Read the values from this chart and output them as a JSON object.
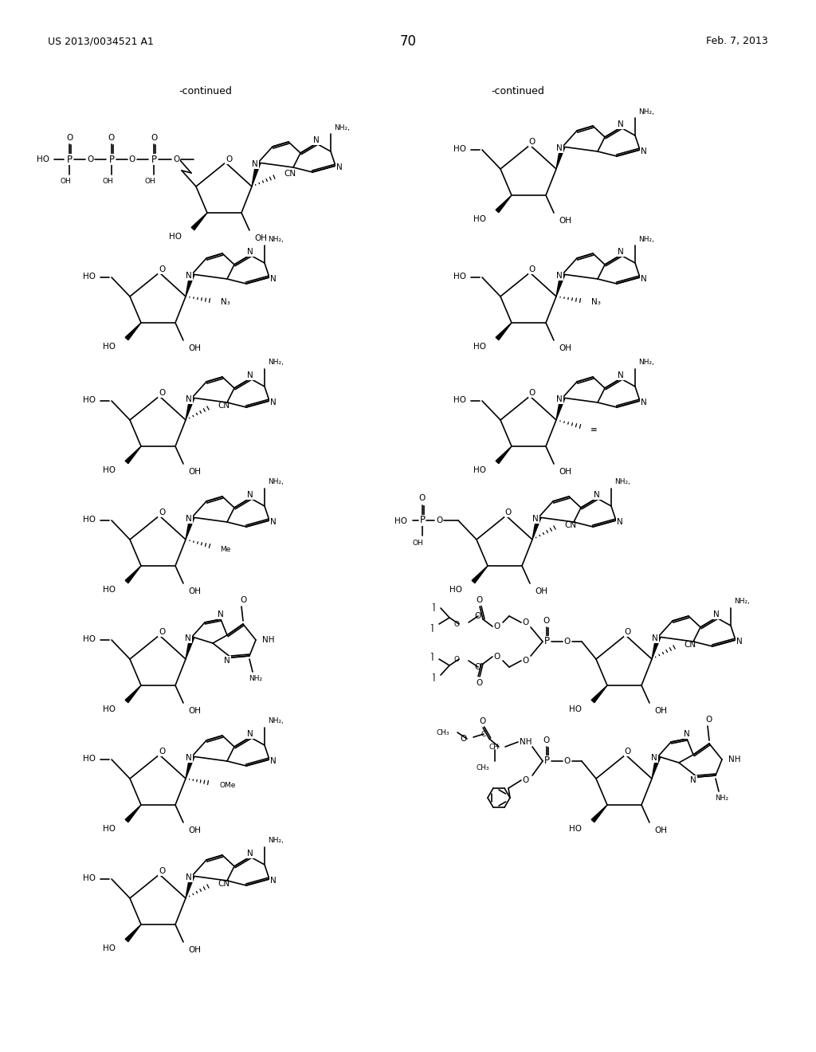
{
  "background_color": "#ffffff",
  "page_number": "70",
  "header_left": "US 2013/0034521 A1",
  "header_right": "Feb. 7, 2013",
  "continued_left": "-continued",
  "continued_right": "-continued"
}
